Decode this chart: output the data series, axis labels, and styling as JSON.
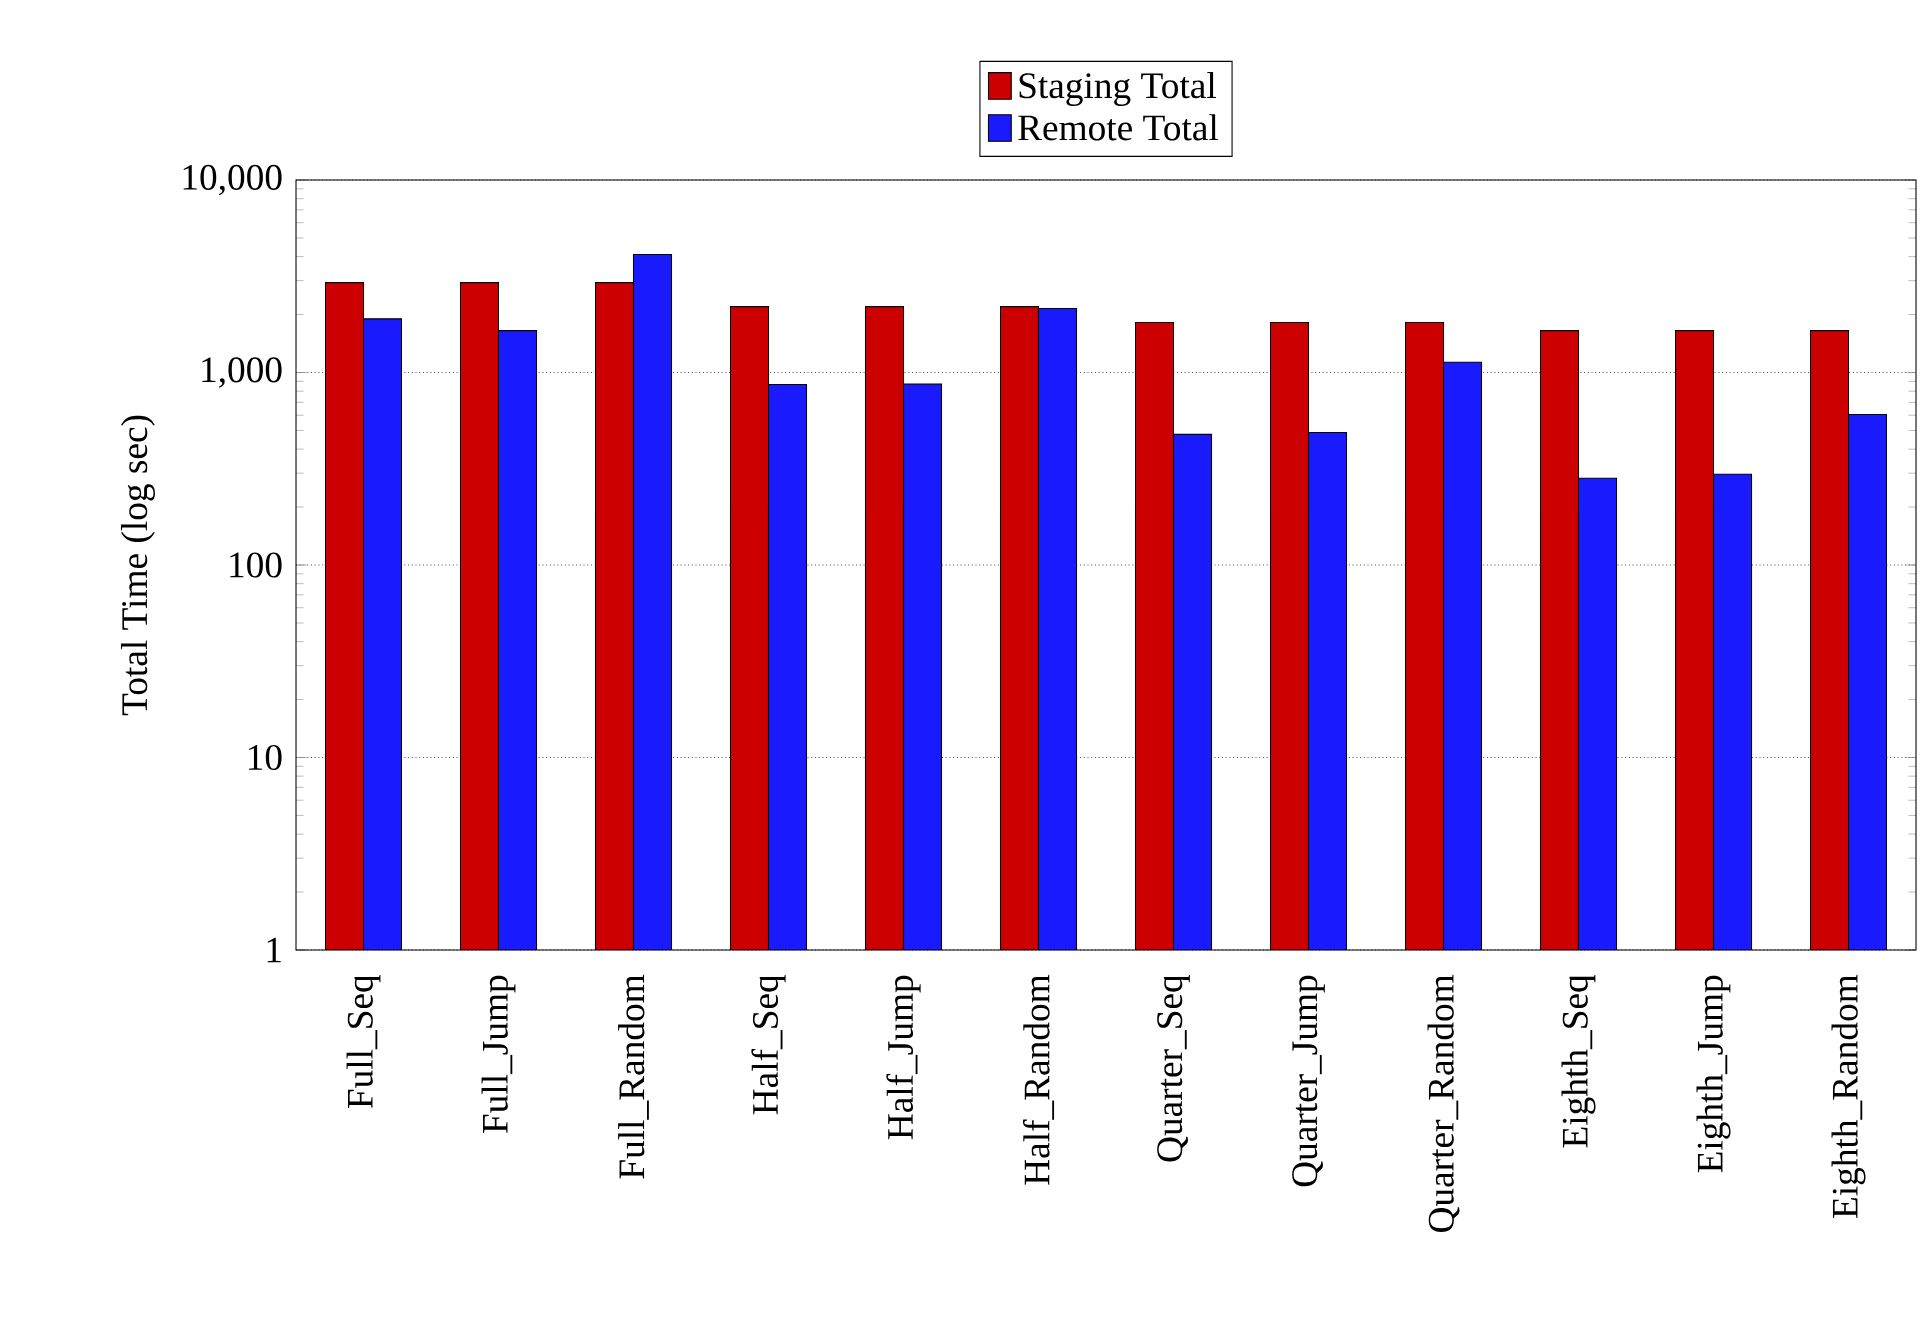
{
  "chart_data": {
    "type": "bar",
    "ylabel": "Total Time (log sec)",
    "categories": [
      "Full_Seq",
      "Full_Jump",
      "Full_Random",
      "Half_Seq",
      "Half_Jump",
      "Half_Random",
      "Quarter_Seq",
      "Quarter_Jump",
      "Quarter_Random",
      "Eighth_Seq",
      "Eighth_Jump",
      "Eighth_Random"
    ],
    "series": [
      {
        "name": "Staging Total",
        "color": "#cc0000",
        "values": [
          2930,
          2930,
          2930,
          2200,
          2200,
          2200,
          1820,
          1820,
          1820,
          1650,
          1650,
          1650
        ]
      },
      {
        "name": "Remote Total",
        "color": "#1a1aff",
        "values": [
          1900,
          1650,
          4100,
          866,
          870,
          2150,
          477,
          488,
          1130,
          282,
          296,
          605
        ]
      }
    ],
    "log": "y",
    "ylim": [
      1,
      10000
    ],
    "yticks": [
      1,
      10,
      100,
      {
        "value": 1000,
        "label": "1,000"
      },
      {
        "value": 10000,
        "label": "10,000"
      }
    ],
    "grid": "y",
    "legend": "top"
  }
}
